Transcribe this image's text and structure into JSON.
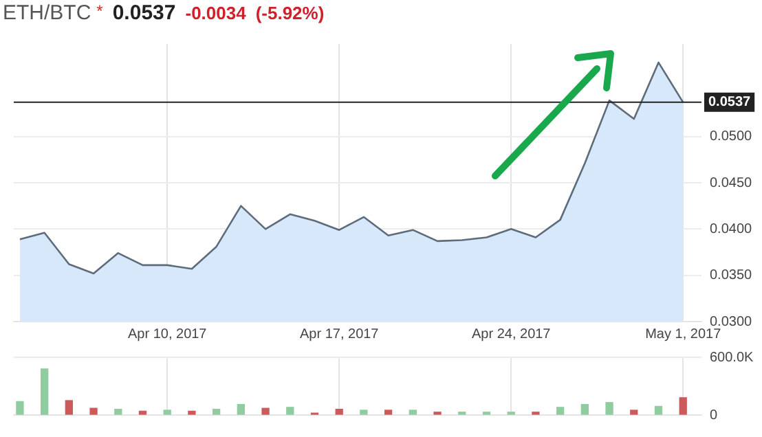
{
  "chart_data": [
    {
      "type": "area",
      "title": "ETH/BTC",
      "annotations": [
        "*",
        "0.0537",
        "-0.0034",
        "(-5.92%)"
      ],
      "x": [
        "2017-04-04",
        "2017-04-05",
        "2017-04-06",
        "2017-04-07",
        "2017-04-08",
        "2017-04-09",
        "2017-04-10",
        "2017-04-11",
        "2017-04-12",
        "2017-04-13",
        "2017-04-14",
        "2017-04-15",
        "2017-04-16",
        "2017-04-17",
        "2017-04-18",
        "2017-04-19",
        "2017-04-20",
        "2017-04-21",
        "2017-04-22",
        "2017-04-23",
        "2017-04-24",
        "2017-04-25",
        "2017-04-26",
        "2017-04-27",
        "2017-04-28",
        "2017-04-29",
        "2017-04-30",
        "2017-05-01"
      ],
      "series": [
        {
          "color": "#5d6b7a",
          "values": [
            0.0389,
            0.0396,
            0.0362,
            0.0352,
            0.0374,
            0.0361,
            0.0361,
            0.0357,
            0.0381,
            0.0425,
            0.04,
            0.0416,
            0.0409,
            0.0399,
            0.0413,
            0.0393,
            0.0399,
            0.0387,
            0.0388,
            0.0391,
            0.04,
            0.0391,
            0.041,
            0.0471,
            0.0539,
            0.0519,
            0.058,
            0.0537
          ]
        }
      ],
      "xlim": [
        "2017-04-03T18:00",
        "2017-05-01T18:00"
      ],
      "xticks": [
        {
          "value": "2017-04-10",
          "label": "Apr 10, 2017"
        },
        {
          "value": "2017-04-17",
          "label": "Apr 17, 2017"
        },
        {
          "value": "2017-04-24",
          "label": "Apr 24, 2017"
        },
        {
          "value": "2017-05-01",
          "label": "May 1, 2017"
        }
      ],
      "ylim": [
        0.03,
        0.06
      ],
      "yticks": [
        {
          "value": 0.03,
          "label": "0.0300"
        },
        {
          "value": 0.035,
          "label": "0.0350"
        },
        {
          "value": 0.04,
          "label": "0.0400"
        },
        {
          "value": 0.045,
          "label": "0.0450"
        },
        {
          "value": 0.05,
          "label": "0.0500"
        }
      ],
      "ref_lines": [
        {
          "axis": "y",
          "value": 0.0537,
          "label": "0.0537",
          "color": "#222222"
        }
      ],
      "grid": true
    },
    {
      "type": "bar",
      "x": [
        "2017-04-04",
        "2017-04-05",
        "2017-04-06",
        "2017-04-07",
        "2017-04-08",
        "2017-04-09",
        "2017-04-10",
        "2017-04-11",
        "2017-04-12",
        "2017-04-13",
        "2017-04-14",
        "2017-04-15",
        "2017-04-16",
        "2017-04-17",
        "2017-04-18",
        "2017-04-19",
        "2017-04-20",
        "2017-04-21",
        "2017-04-22",
        "2017-04-23",
        "2017-04-24",
        "2017-04-25",
        "2017-04-26",
        "2017-04-27",
        "2017-04-28",
        "2017-04-29",
        "2017-04-30",
        "2017-05-01"
      ],
      "values": [
        140000,
        480000,
        150000,
        70000,
        60000,
        40000,
        50000,
        40000,
        60000,
        110000,
        70000,
        80000,
        20000,
        60000,
        50000,
        50000,
        50000,
        30000,
        30000,
        30000,
        30000,
        30000,
        80000,
        110000,
        130000,
        50000,
        90000,
        180000
      ],
      "colors": [
        "#8fcca0",
        "#8fcca0",
        "#cc5a5a",
        "#cc5a5a",
        "#8fcca0",
        "#cc5a5a",
        "#8fcca0",
        "#cc5a5a",
        "#8fcca0",
        "#8fcca0",
        "#cc5a5a",
        "#8fcca0",
        "#cc5a5a",
        "#cc5a5a",
        "#8fcca0",
        "#cc5a5a",
        "#8fcca0",
        "#cc5a5a",
        "#8fcca0",
        "#8fcca0",
        "#8fcca0",
        "#cc5a5a",
        "#8fcca0",
        "#8fcca0",
        "#8fcca0",
        "#cc5a5a",
        "#8fcca0",
        "#cc5a5a"
      ],
      "xlim": [
        "2017-04-03T18:00",
        "2017-05-01T18:00"
      ],
      "xticks": [
        {
          "value": "2017-04-10",
          "label": null
        },
        {
          "value": "2017-04-17",
          "label": null
        },
        {
          "value": "2017-04-24",
          "label": null
        },
        {
          "value": "2017-05-01",
          "label": null
        }
      ],
      "ylim": [
        0,
        600000
      ],
      "yticks": [
        0,
        {
          "value": 600000,
          "label": "600.0K"
        }
      ],
      "tick_labels": "y",
      "grid": true
    }
  ]
}
